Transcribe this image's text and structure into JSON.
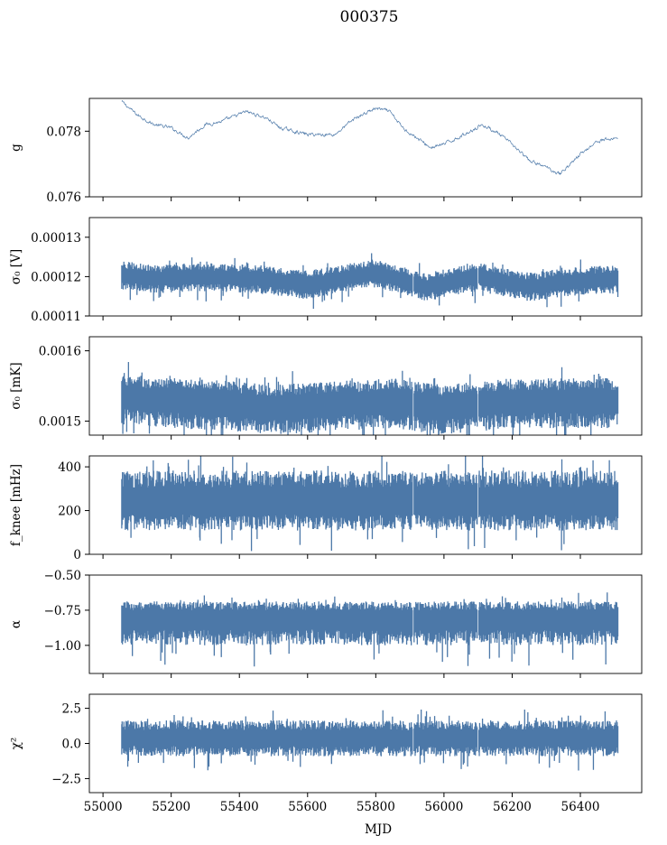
{
  "chart_data": {
    "type": "line",
    "title": "000375",
    "xlabel": "MJD",
    "xlim": [
      54960,
      56580
    ],
    "xticks": [
      55000,
      55200,
      55400,
      55600,
      55800,
      56000,
      56200,
      56400
    ],
    "xtick_labels": [
      "55000",
      "55200",
      "55400",
      "55600",
      "55800",
      "56000",
      "56200",
      "56400"
    ],
    "series_color": "#4c78a8",
    "data_range": [
      55055,
      56510
    ],
    "gaps": [
      55910,
      56100
    ],
    "panels": [
      {
        "id": "g",
        "ylabel": "g",
        "ylim": [
          0.076,
          0.079
        ],
        "yticks": [
          0.076,
          0.078
        ],
        "ytick_labels": [
          "0.076",
          "0.078"
        ],
        "style": "trend",
        "noise": 4e-05,
        "trend": [
          [
            55055,
            0.0789
          ],
          [
            55100,
            0.0785
          ],
          [
            55150,
            0.0782
          ],
          [
            55200,
            0.0781
          ],
          [
            55250,
            0.0778
          ],
          [
            55300,
            0.0782
          ],
          [
            55350,
            0.0783
          ],
          [
            55420,
            0.0786
          ],
          [
            55480,
            0.0784
          ],
          [
            55520,
            0.0781
          ],
          [
            55600,
            0.0779
          ],
          [
            55680,
            0.0779
          ],
          [
            55740,
            0.0784
          ],
          [
            55800,
            0.0787
          ],
          [
            55840,
            0.0786
          ],
          [
            55880,
            0.0781
          ],
          [
            55920,
            0.0778
          ],
          [
            55960,
            0.0775
          ],
          [
            56000,
            0.0776
          ],
          [
            56060,
            0.0779
          ],
          [
            56110,
            0.0782
          ],
          [
            56150,
            0.078
          ],
          [
            56200,
            0.0776
          ],
          [
            56250,
            0.0771
          ],
          [
            56300,
            0.0769
          ],
          [
            56340,
            0.0767
          ],
          [
            56400,
            0.0773
          ],
          [
            56450,
            0.0777
          ],
          [
            56510,
            0.0778
          ]
        ]
      },
      {
        "id": "sigma0_v",
        "ylabel": "σ₀ [V]",
        "ylim": [
          0.00011,
          0.000135
        ],
        "yticks": [
          0.00011,
          0.00012,
          0.00013
        ],
        "ytick_labels": [
          "0.00011",
          "0.00012",
          "0.00013"
        ],
        "style": "noise",
        "hi_spread": 2.8e-06,
        "lo_spread": 3e-06,
        "trend": [
          [
            55055,
            0.0001205
          ],
          [
            55150,
            0.0001195
          ],
          [
            55300,
            0.00012
          ],
          [
            55450,
            0.0001195
          ],
          [
            55600,
            0.000118
          ],
          [
            55800,
            0.000121
          ],
          [
            55950,
            0.0001175
          ],
          [
            56100,
            0.00012
          ],
          [
            56250,
            0.0001175
          ],
          [
            56400,
            0.000119
          ],
          [
            56510,
            0.0001195
          ]
        ]
      },
      {
        "id": "sigma0_mk",
        "ylabel": "σ₀ [mK]",
        "ylim": [
          0.00148,
          0.00162
        ],
        "yticks": [
          0.0015,
          0.0016
        ],
        "ytick_labels": [
          "0.0015",
          "0.0016"
        ],
        "style": "noise",
        "hi_spread": 2.5e-05,
        "lo_spread": 3.2e-05,
        "trend": [
          [
            55055,
            0.001535
          ],
          [
            55200,
            0.00153
          ],
          [
            55400,
            0.001525
          ],
          [
            55500,
            0.00152
          ],
          [
            55650,
            0.001525
          ],
          [
            55850,
            0.00153
          ],
          [
            56000,
            0.00152
          ],
          [
            56200,
            0.00153
          ],
          [
            56400,
            0.00153
          ],
          [
            56510,
            0.00153
          ]
        ]
      },
      {
        "id": "fknee",
        "ylabel": "f_knee [mHz]",
        "ylim": [
          0,
          450
        ],
        "yticks": [
          0,
          200,
          400
        ],
        "ytick_labels": [
          "0",
          "200",
          "400"
        ],
        "style": "noise",
        "hi_spread": 115,
        "lo_spread": 105,
        "trend": [
          [
            55055,
            240
          ],
          [
            56510,
            240
          ]
        ]
      },
      {
        "id": "alpha",
        "ylabel": "α",
        "ylim": [
          -1.2,
          -0.5
        ],
        "yticks": [
          -0.5,
          -0.75,
          -1.0
        ],
        "ytick_labels": [
          "−0.50",
          "−0.75",
          "−1.00"
        ],
        "style": "noise",
        "hi_spread": 0.09,
        "lo_spread": 0.16,
        "trend": [
          [
            55055,
            -0.8
          ],
          [
            56510,
            -0.8
          ]
        ]
      },
      {
        "id": "chi2",
        "ylabel": "χ²",
        "ylim": [
          -3.5,
          3.5
        ],
        "yticks": [
          2.5,
          0.0,
          -2.5
        ],
        "ytick_labels": [
          "2.5",
          "0.0",
          "−2.5"
        ],
        "style": "noise",
        "hi_spread": 1.0,
        "lo_spread": 1.05,
        "trend": [
          [
            55055,
            0.4
          ],
          [
            56510,
            0.4
          ]
        ]
      }
    ]
  }
}
